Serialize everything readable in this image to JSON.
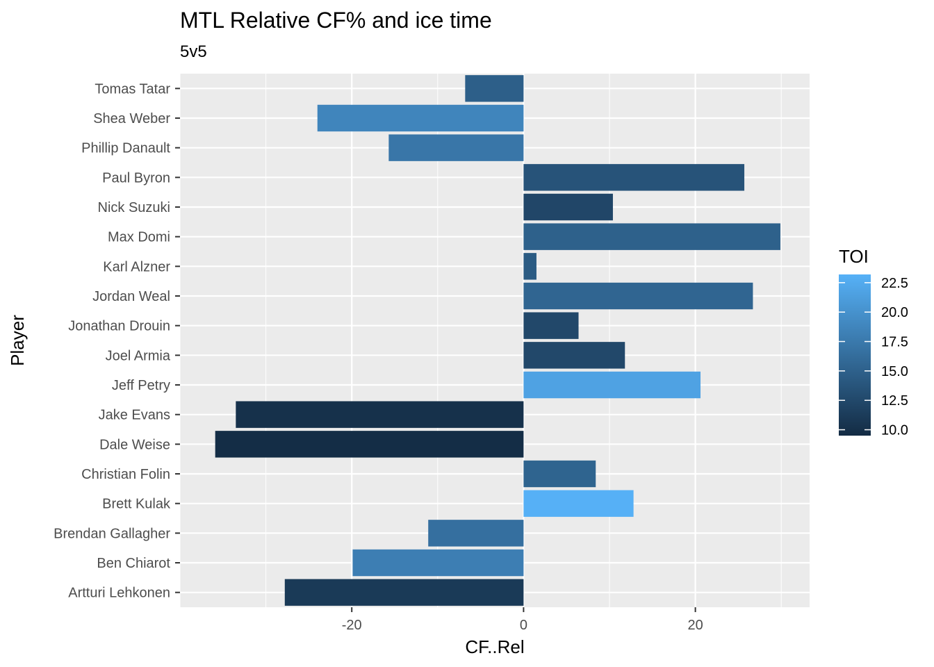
{
  "chart_data": {
    "type": "bar",
    "orientation": "horizontal",
    "title": "MTL Relative CF% and ice time",
    "subtitle": "5v5",
    "xlabel": "CF..Rel",
    "ylabel": "Player",
    "xlim": [
      -40,
      33.3
    ],
    "x_ticks": [
      -20,
      0,
      20
    ],
    "x_tick_labels": [
      "-20",
      "0",
      "20"
    ],
    "grid": true,
    "categories": [
      "Tomas Tatar",
      "Shea Weber",
      "Phillip Danault",
      "Paul Byron",
      "Nick Suzuki",
      "Max Domi",
      "Karl Alzner",
      "Jordan Weal",
      "Jonathan Drouin",
      "Joel Armia",
      "Jeff Petry",
      "Jake Evans",
      "Dale Weise",
      "Christian Folin",
      "Brett Kulak",
      "Brendan Gallagher",
      "Ben Chiarot",
      "Artturi Lehkonen"
    ],
    "values": [
      -6.8,
      -24.0,
      -15.7,
      25.7,
      10.4,
      29.9,
      1.5,
      26.7,
      6.4,
      11.8,
      20.6,
      -33.5,
      -35.9,
      8.4,
      12.8,
      -11.1,
      -19.9,
      -27.8
    ],
    "toi": [
      14.8,
      18.7,
      17.2,
      13.6,
      12.3,
      15.0,
      14.4,
      15.4,
      12.5,
      12.5,
      21.7,
      10.1,
      9.7,
      15.3,
      23.1,
      16.5,
      18.0,
      11.0
    ],
    "legend": {
      "title": "TOI",
      "position": "right",
      "min": 9.5,
      "max": 23.2,
      "breaks": [
        10.0,
        12.5,
        15.0,
        17.5,
        20.0,
        22.5
      ],
      "break_labels": [
        "10.0",
        "12.5",
        "15.0",
        "17.5",
        "20.0",
        "22.5"
      ],
      "color_low": "#132B43",
      "color_high": "#56B1F7"
    },
    "panel_background": "#EBEBEB",
    "grid_color": "#FFFFFF"
  }
}
